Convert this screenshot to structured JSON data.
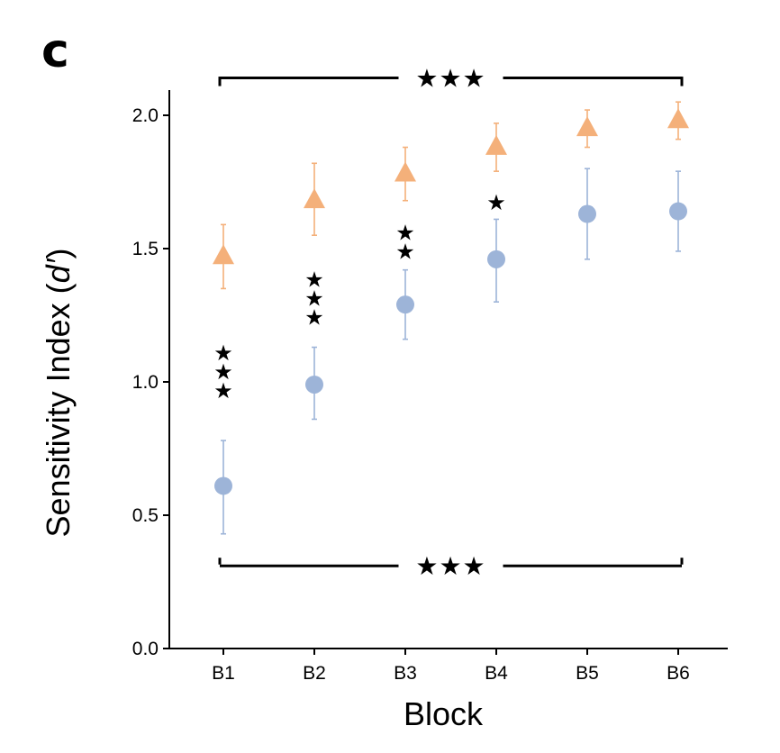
{
  "panel_label": "c",
  "chart_data": {
    "type": "scatter",
    "title": "",
    "xlabel": "Block",
    "ylabel_prefix": "Sensitivity Index (",
    "ylabel_italic": "d′",
    "ylabel_suffix": ")",
    "categories": [
      "B1",
      "B2",
      "B3",
      "B4",
      "B5",
      "B6"
    ],
    "ylim": [
      0,
      2.05
    ],
    "yticks": [
      0.0,
      0.5,
      1.0,
      1.5,
      2.0
    ],
    "ytick_labels": [
      "0.0",
      "0.5",
      "1.0",
      "1.5",
      "2.0"
    ],
    "grid": false,
    "legend": "none",
    "series": [
      {
        "marker": "triangle",
        "color": "#F4B07A",
        "values": [
          1.47,
          1.68,
          1.78,
          1.88,
          1.95,
          1.98
        ],
        "err_low": [
          1.35,
          1.55,
          1.68,
          1.79,
          1.88,
          1.91
        ],
        "err_high": [
          1.59,
          1.82,
          1.88,
          1.97,
          2.02,
          2.05
        ]
      },
      {
        "marker": "circle",
        "color": "#9DB4D8",
        "values": [
          0.61,
          0.99,
          1.29,
          1.46,
          1.63,
          1.64
        ],
        "err_low": [
          0.43,
          0.86,
          1.16,
          1.3,
          1.46,
          1.49
        ],
        "err_high": [
          0.78,
          1.13,
          1.42,
          1.61,
          1.8,
          1.79
        ]
      }
    ],
    "pairwise_significance": [
      {
        "category": "B1",
        "stars": 3
      },
      {
        "category": "B2",
        "stars": 3
      },
      {
        "category": "B3",
        "stars": 2
      },
      {
        "category": "B4",
        "stars": 1
      }
    ],
    "trend_brackets": [
      {
        "series": "triangle",
        "from": "B1",
        "to": "B6",
        "label": "★★★",
        "y": 2.14
      },
      {
        "series": "circle",
        "from": "B1",
        "to": "B6",
        "label": "★★★",
        "y": 0.31
      }
    ]
  }
}
